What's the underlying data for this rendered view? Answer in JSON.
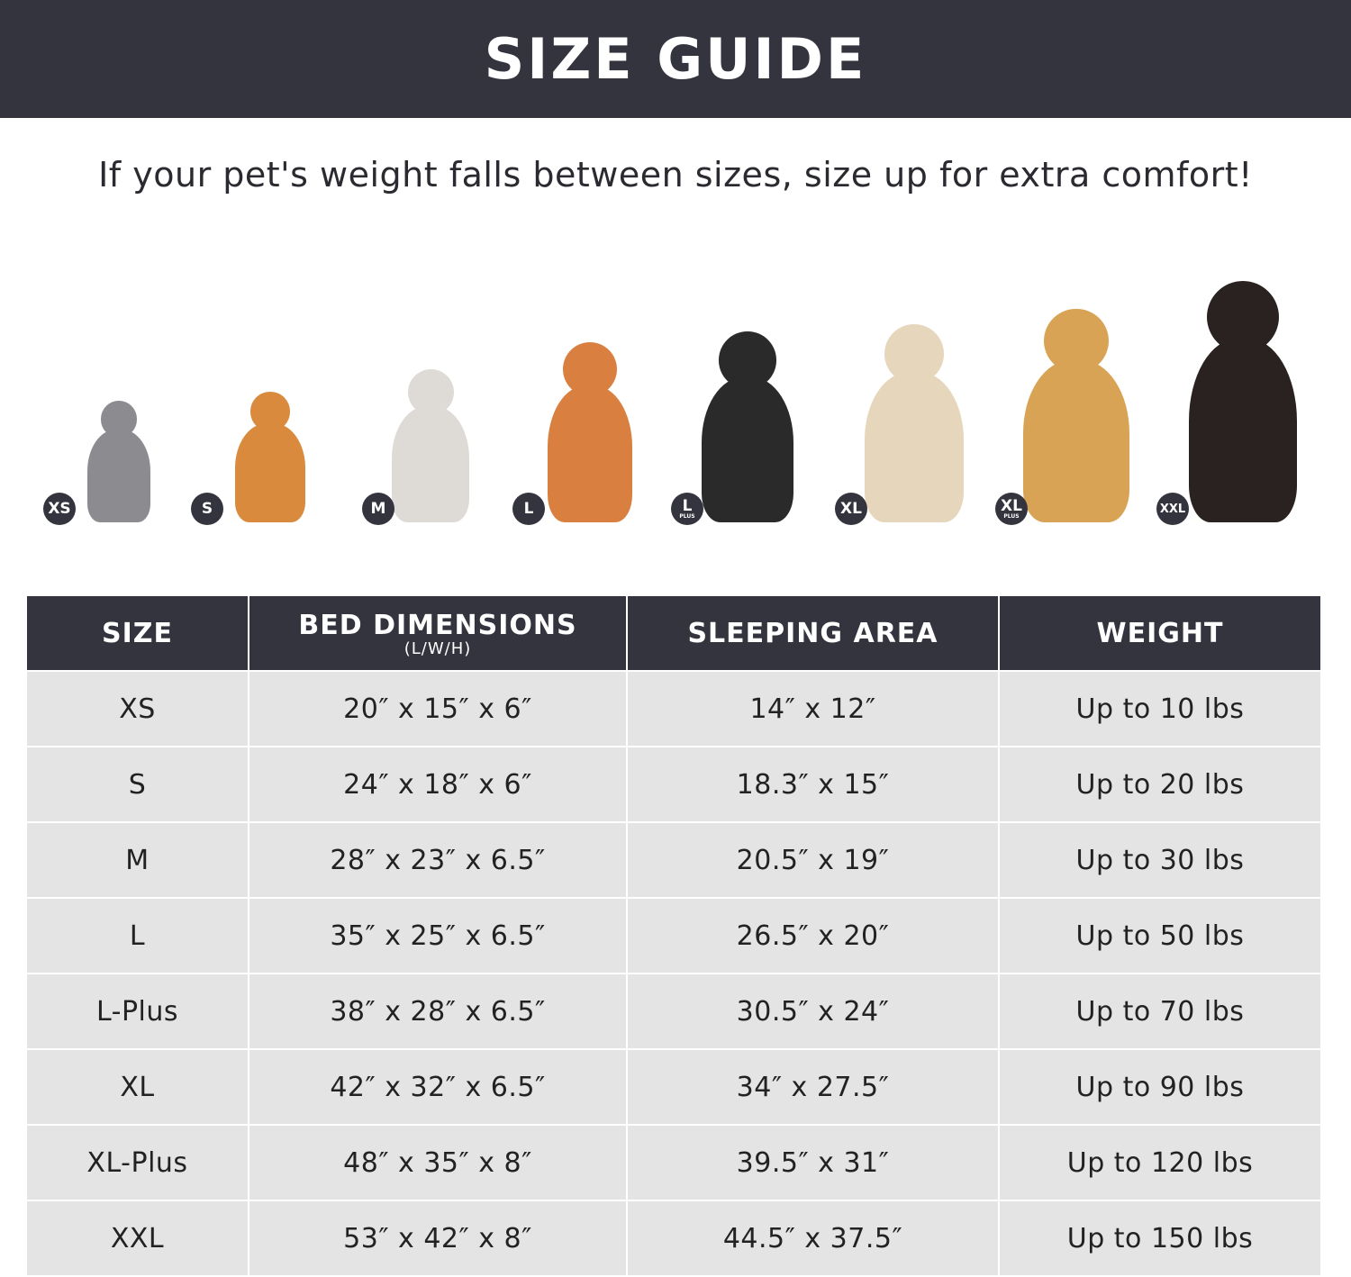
{
  "title": "SIZE GUIDE",
  "subtitle": "If your pet's weight falls between sizes, size up for extra comfort!",
  "pets": [
    {
      "badge": "XS",
      "plus": "",
      "animal": "cat",
      "color": "#8c8c90"
    },
    {
      "badge": "S",
      "plus": "",
      "animal": "pomeranian",
      "color": "#d98a3c"
    },
    {
      "badge": "M",
      "plus": "",
      "animal": "french-bulldog",
      "color": "#dedad6"
    },
    {
      "badge": "L",
      "plus": "",
      "animal": "shiba-inu",
      "color": "#d98040"
    },
    {
      "badge": "L",
      "plus": "PLUS",
      "animal": "border-collie",
      "color": "#2a2a2a"
    },
    {
      "badge": "XL",
      "plus": "",
      "animal": "labrador",
      "color": "#e6d6bc"
    },
    {
      "badge": "XL",
      "plus": "PLUS",
      "animal": "golden-retriever",
      "color": "#d9a356"
    },
    {
      "badge": "XXL",
      "plus": "",
      "animal": "doberman",
      "color": "#2a2220"
    }
  ],
  "table": {
    "headers": [
      "SIZE",
      "BED DIMENSIONS",
      "SLEEPING AREA",
      "WEIGHT"
    ],
    "headers_sub": "(L/W/H)",
    "rows": [
      [
        "XS",
        "20″ x 15″ x 6″",
        "14″ x 12″",
        "Up to 10 lbs"
      ],
      [
        "S",
        "24″ x 18″ x 6″",
        "18.3″ x 15″",
        "Up to 20 lbs"
      ],
      [
        "M",
        "28″ x 23″ x 6.5″",
        "20.5″ x 19″",
        "Up to 30 lbs"
      ],
      [
        "L",
        "35″ x 25″ x 6.5″",
        "26.5″ x 20″",
        "Up to 50 lbs"
      ],
      [
        "L-Plus",
        "38″ x 28″ x 6.5″",
        "30.5″ x 24″",
        "Up to 70 lbs"
      ],
      [
        "XL",
        "42″ x 32″ x 6.5″",
        "34″ x 27.5″",
        "Up to 90 lbs"
      ],
      [
        "XL-Plus",
        "48″ x 35″ x 8″",
        "39.5″ x 31″",
        "Up to 120 lbs"
      ],
      [
        "XXL",
        "53″ x 42″ x 8″",
        "44.5″ x 37.5″",
        "Up to 150 lbs"
      ]
    ]
  }
}
